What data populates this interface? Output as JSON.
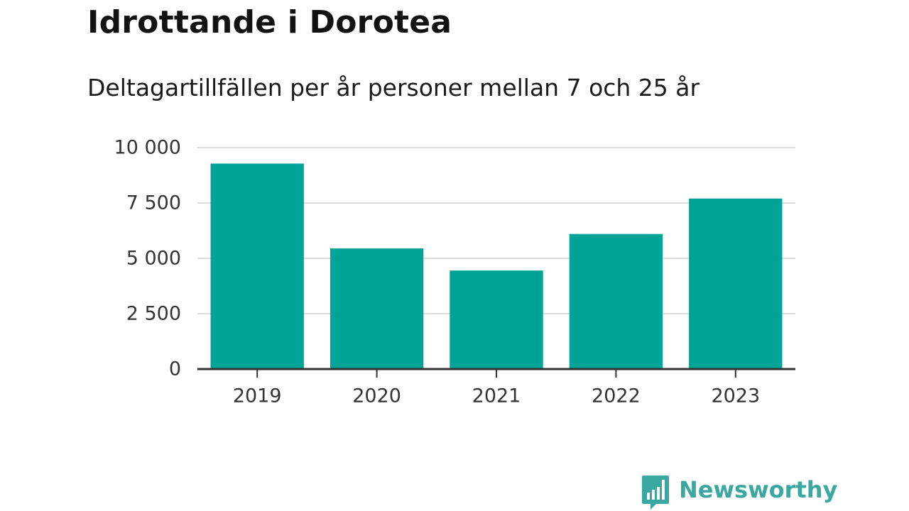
{
  "header": {
    "title": "Idrottande i Dorotea",
    "subtitle": "Deltagartillfällen per år personer mellan 7 och 25 år"
  },
  "chart_data": {
    "type": "bar",
    "categories": [
      "2019",
      "2020",
      "2021",
      "2022",
      "2023"
    ],
    "values": [
      9280,
      5450,
      4450,
      6100,
      7700
    ],
    "ylim": [
      0,
      10000
    ],
    "yticks": [
      0,
      2500,
      5000,
      7500,
      10000
    ],
    "ytick_labels": [
      "0",
      "2 500",
      "5 000",
      "7 500",
      "10 000"
    ],
    "grid": true,
    "bar_color": "#00a398",
    "grid_color": "#dddddd",
    "axis_color": "#333333"
  },
  "branding": {
    "name": "Newsworthy",
    "color": "#3aa7a0",
    "icon": "newsworthy-logo-icon"
  }
}
